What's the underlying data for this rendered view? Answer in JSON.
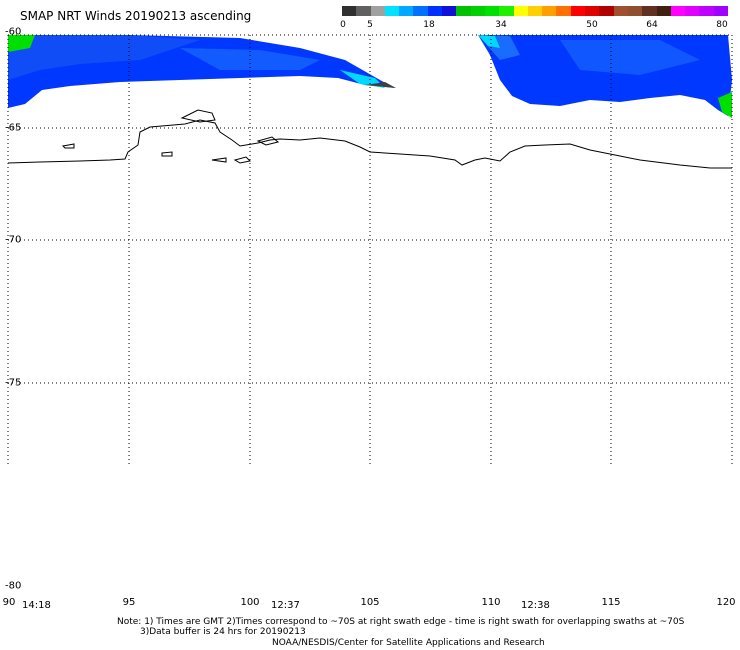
{
  "title": "SMAP NRT Winds 20190213 ascending",
  "colorbar": {
    "labels": [
      "0",
      "5",
      "18",
      "34",
      "50",
      "64",
      "80"
    ],
    "colors": [
      "#303030",
      "#606060",
      "#a0a0a0",
      "#00e0ff",
      "#00a8ff",
      "#0070ff",
      "#0030ff",
      "#1010d8",
      "#00c000",
      "#00d000",
      "#00e000",
      "#20f000",
      "#ffff00",
      "#ffd000",
      "#ffa000",
      "#ff7000",
      "#ff0000",
      "#e00000",
      "#b00000",
      "#a05030",
      "#905030",
      "#603020",
      "#402010",
      "#ff00ff",
      "#e000ff",
      "#c000ff",
      "#a000ff"
    ]
  },
  "y_labels": [
    "-60",
    "-65",
    "-70",
    "-75",
    "-80"
  ],
  "x_labels": [
    "90",
    "95",
    "100",
    "105",
    "110",
    "115",
    "120"
  ],
  "time_labels": [
    "14:18",
    "12:37",
    "12:38"
  ],
  "note_line1": "Note: 1) Times are GMT 2)Times correspond to ~70S at right swath edge - time is right swath for overlapping swaths at ~70S",
  "note_line2": "3)Data buffer is 24 hrs for 20190213",
  "credit": "NOAA/NESDIS/Center for Satellite Applications and Research",
  "colors": {
    "wind_low": "#0038ff",
    "wind_mid": "#1a6cff",
    "cyan": "#00d8ff",
    "green": "#00e000",
    "coast": "#000000"
  }
}
